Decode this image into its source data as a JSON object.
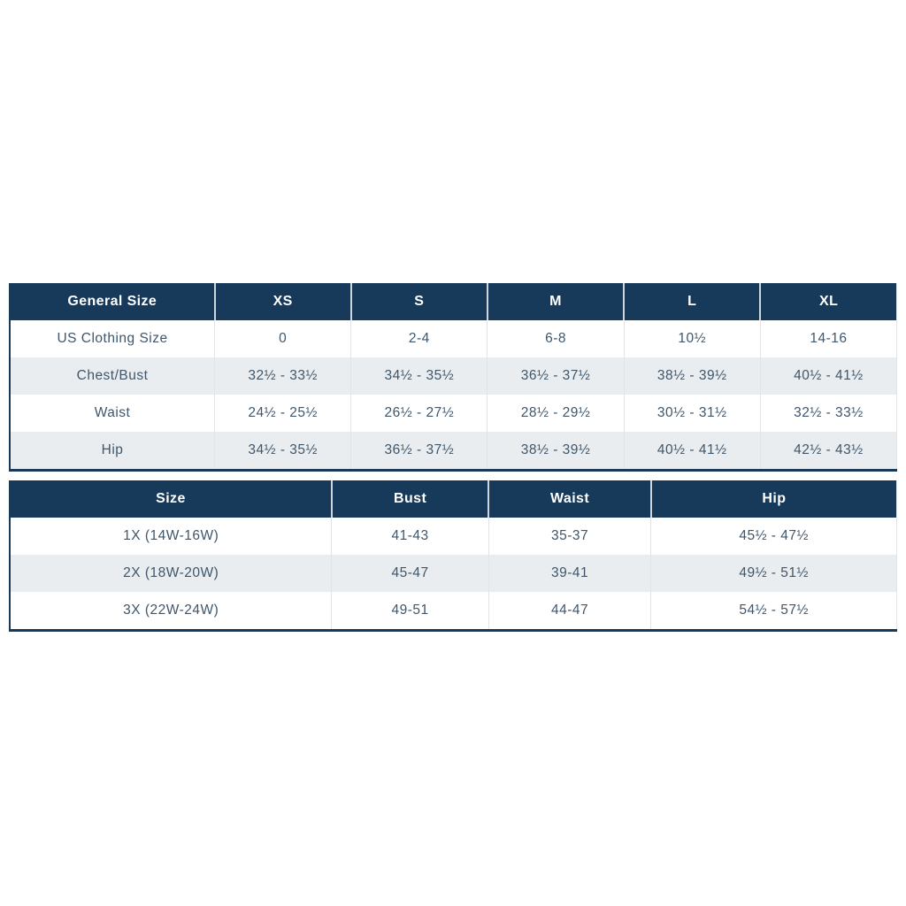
{
  "colors": {
    "header_bg": "#17395a",
    "header_text": "#ffffff",
    "row_bg": "#ffffff",
    "alt_row_bg": "#e9edef",
    "cell_text": "#3f566b",
    "grid_line": "#dfe5e8",
    "header_divider": "#ccd6dc",
    "table_border": "#17395a"
  },
  "general_size_table": {
    "columns": [
      "General Size",
      "XS",
      "S",
      "M",
      "L",
      "XL"
    ],
    "rows": [
      {
        "label": "US Clothing Size",
        "values": [
          "0",
          "2-4",
          "6-8",
          "10½",
          "14-16"
        ]
      },
      {
        "label": "Chest/Bust",
        "values": [
          "32½ - 33½",
          "34½ - 35½",
          "36½ - 37½",
          "38½ - 39½",
          "40½ - 41½"
        ]
      },
      {
        "label": "Waist",
        "values": [
          "24½ - 25½",
          "26½ - 27½",
          "28½ - 29½",
          "30½ - 31½",
          "32½ - 33½"
        ]
      },
      {
        "label": "Hip",
        "values": [
          "34½ - 35½",
          "36½ - 37½",
          "38½ - 39½",
          "40½ - 41½",
          "42½ - 43½"
        ]
      }
    ]
  },
  "plus_size_table": {
    "columns": [
      "Size",
      "Bust",
      "Waist",
      "Hip"
    ],
    "rows": [
      {
        "label": "1X (14W-16W)",
        "values": [
          "41-43",
          "35-37",
          "45½ - 47½"
        ]
      },
      {
        "label": "2X (18W-20W)",
        "values": [
          "45-47",
          "39-41",
          "49½ - 51½"
        ]
      },
      {
        "label": "3X (22W-24W)",
        "values": [
          "49-51",
          "44-47",
          "54½ - 57½"
        ]
      }
    ]
  }
}
